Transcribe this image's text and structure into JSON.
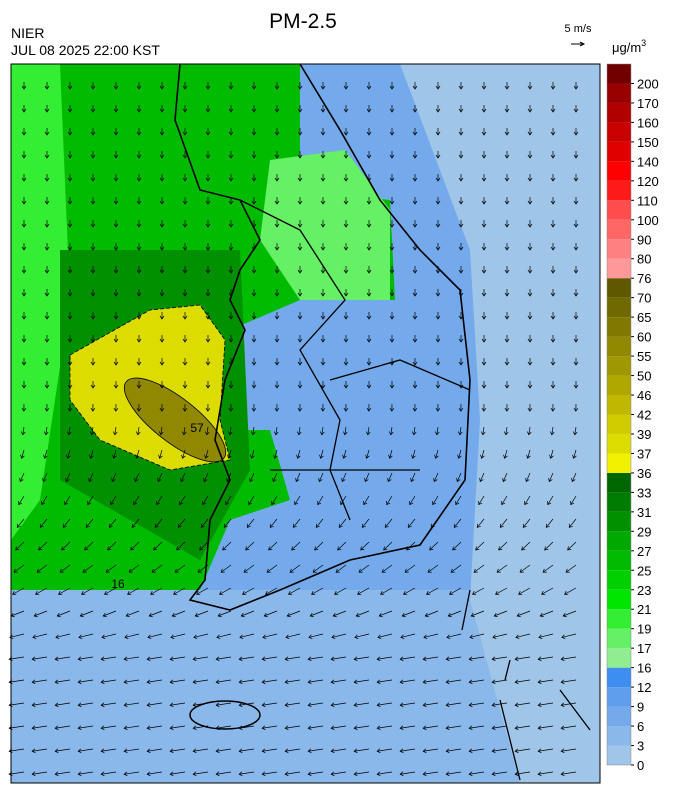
{
  "header": {
    "title": "PM-2.5",
    "agency": "NIER",
    "timestamp": "JUL 08 2025 22:00 KST",
    "wind_scale": "5 m/s",
    "unit": "μg/m",
    "unit_exponent": "3"
  },
  "map": {
    "contour_labels": [
      16,
      57
    ]
  },
  "colorbar": {
    "levels": [
      0,
      3,
      6,
      9,
      12,
      16,
      17,
      19,
      21,
      23,
      25,
      27,
      29,
      31,
      33,
      36,
      37,
      39,
      42,
      46,
      50,
      55,
      60,
      65,
      70,
      76,
      80,
      90,
      100,
      110,
      120,
      140,
      150,
      160,
      170,
      200
    ],
    "colors": [
      "#9fc5e8",
      "#8ab8ea",
      "#74aaeb",
      "#5f9ded",
      "#3d8ef0",
      "#90ee90",
      "#66f066",
      "#33ee33",
      "#00e600",
      "#00d000",
      "#00bb00",
      "#00a800",
      "#009000",
      "#007c00",
      "#006600",
      "#f0f000",
      "#dcdc00",
      "#d0cc00",
      "#c0b800",
      "#b0a800",
      "#a09800",
      "#908800",
      "#807800",
      "#706800",
      "#605800",
      "#ff9999",
      "#ff8080",
      "#ff6666",
      "#ff4d4d",
      "#ff1a1a",
      "#ff0000",
      "#e00000",
      "#c80000",
      "#b00000",
      "#980000",
      "#700000"
    ]
  }
}
